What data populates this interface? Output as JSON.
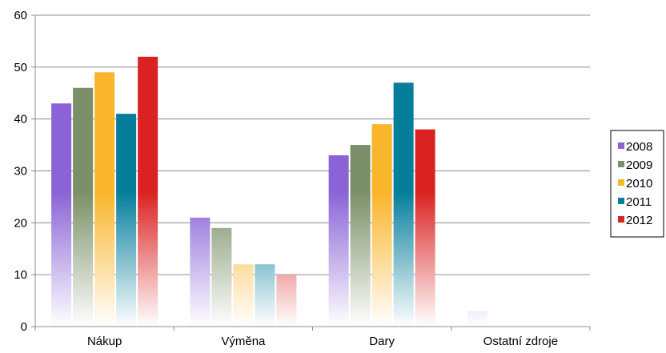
{
  "chart_data": {
    "type": "bar",
    "categories": [
      "Nákup",
      "Výměna",
      "Dary",
      "Ostatní zdroje"
    ],
    "series": [
      {
        "name": "2008",
        "color": "#8a64d6",
        "values": [
          43,
          21,
          33,
          3
        ]
      },
      {
        "name": "2009",
        "color": "#7a8f67",
        "values": [
          46,
          19,
          35,
          0
        ]
      },
      {
        "name": "2010",
        "color": "#f9b52b",
        "values": [
          49,
          12,
          39,
          0
        ]
      },
      {
        "name": "2011",
        "color": "#057e9b",
        "values": [
          41,
          12,
          47,
          0
        ]
      },
      {
        "name": "2012",
        "color": "#da2222",
        "values": [
          52,
          10,
          38,
          0
        ]
      }
    ],
    "yticks": [
      "0",
      "10",
      "20",
      "30",
      "40",
      "50",
      "60"
    ],
    "ylim": [
      0,
      60
    ],
    "grid": true,
    "legend": "right"
  }
}
